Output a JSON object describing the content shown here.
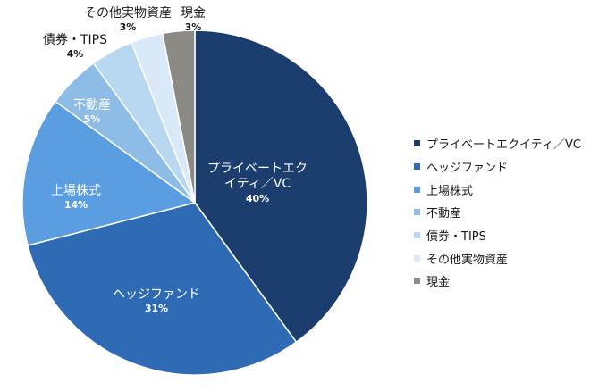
{
  "chart_data": {
    "type": "pie",
    "title": "",
    "start_angle_deg": 0,
    "direction": "clockwise",
    "slices": [
      {
        "label": "プライベートエクイティ／VC",
        "display_label": "プライベートエク\nイティ／VC",
        "value": 40,
        "value_label": "40%",
        "color": "#1b3e6e"
      },
      {
        "label": "ヘッジファンド",
        "display_label": "ヘッジファンド",
        "value": 31,
        "value_label": "31%",
        "color": "#2f6bb4"
      },
      {
        "label": "上場株式",
        "display_label": "上場株式",
        "value": 14,
        "value_label": "14%",
        "color": "#5a9de0"
      },
      {
        "label": "不動産",
        "display_label": "不動産",
        "value": 5,
        "value_label": "5%",
        "color": "#8dbde6"
      },
      {
        "label": "債券・TIPS",
        "display_label": "債券・TIPS",
        "value": 4,
        "value_label": "4%",
        "color": "#b8d7f0"
      },
      {
        "label": "その他実物資産",
        "display_label": "その他実物資産",
        "value": 3,
        "value_label": "3%",
        "color": "#dae9f7"
      },
      {
        "label": "現金",
        "display_label": "現金",
        "value": 3,
        "value_label": "3%",
        "color": "#8c8a85"
      }
    ],
    "legend_position": "right"
  }
}
